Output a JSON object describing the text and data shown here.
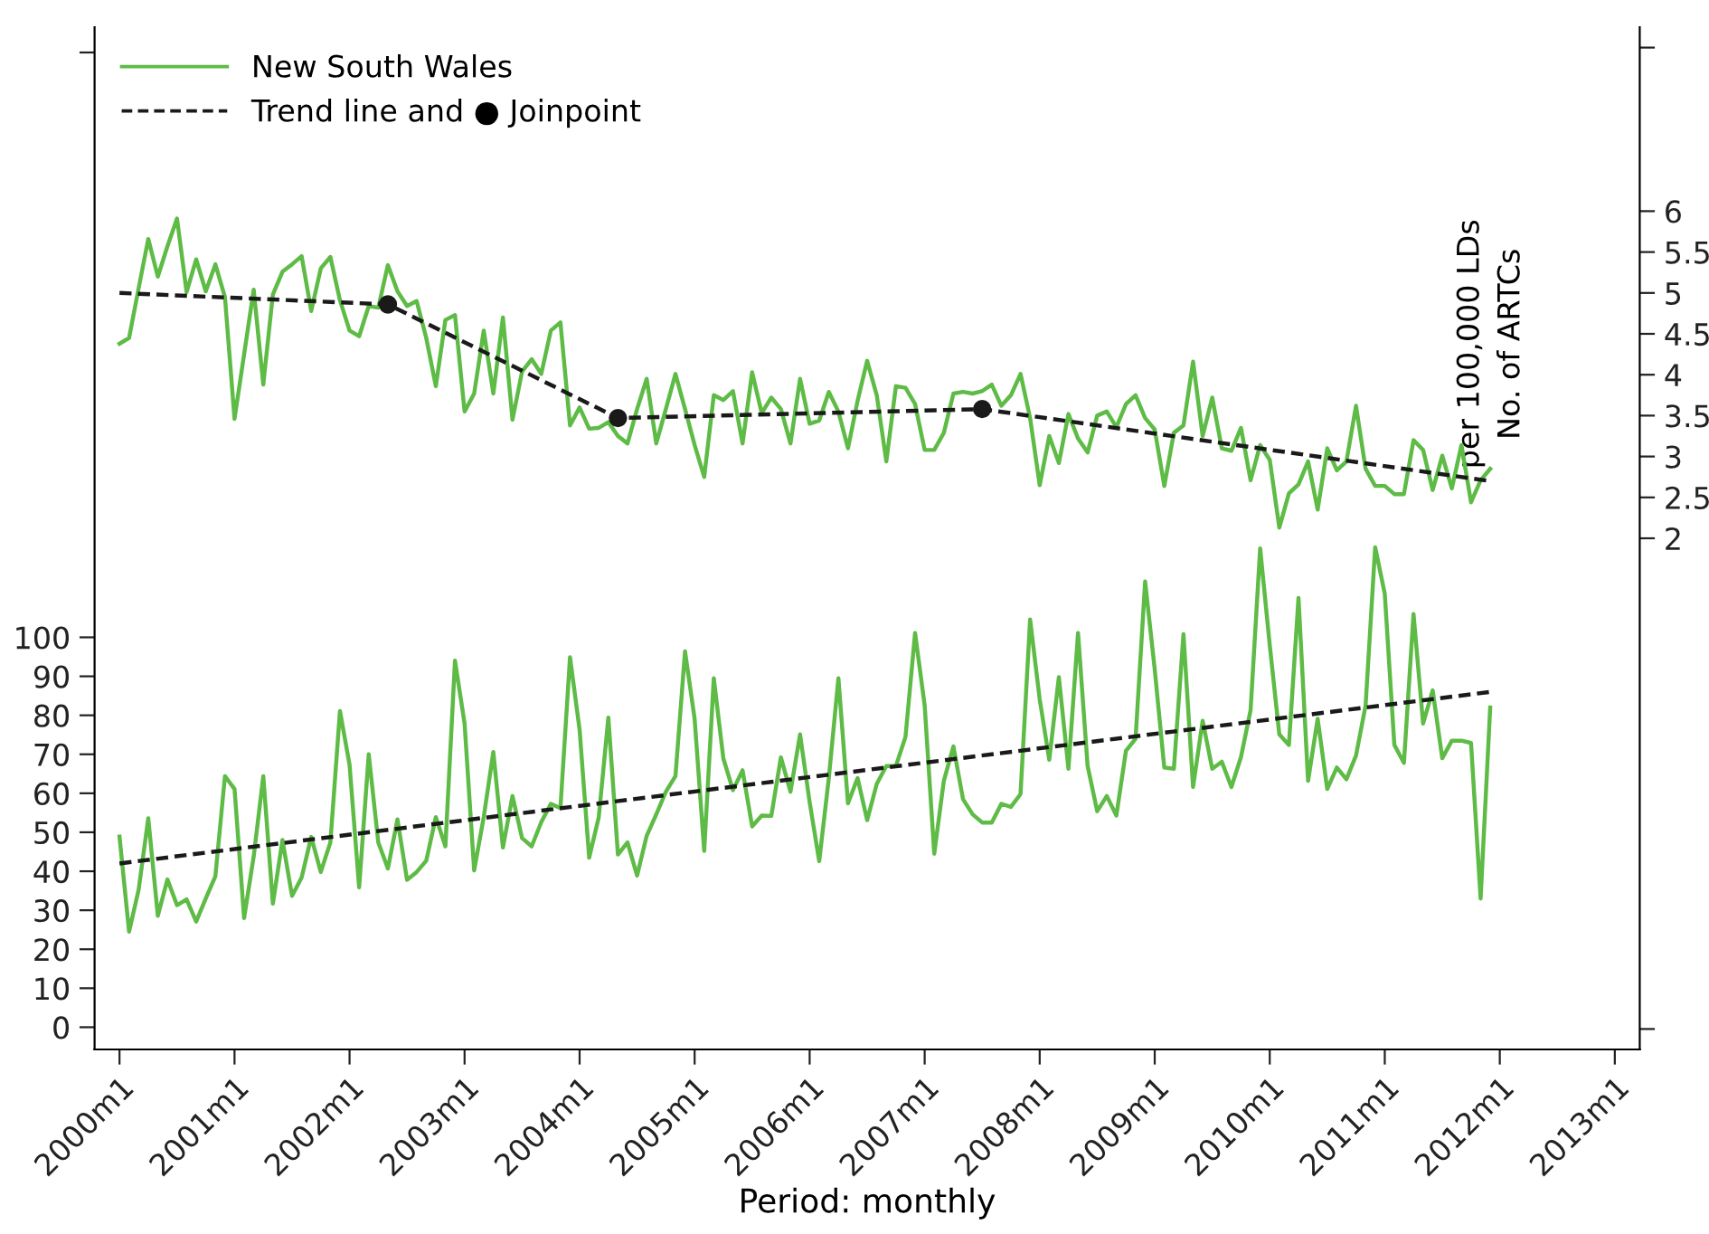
{
  "chart_data": {
    "type": "line",
    "xlabel": "Period: monthly",
    "y2label": "per 100,000 LDs\nNo. of ARTCs",
    "x": [
      "2000-01",
      "2000-02",
      "2000-03",
      "2000-04",
      "2000-05",
      "2000-06",
      "2000-07",
      "2000-08",
      "2000-09",
      "2000-10",
      "2000-11",
      "2000-12",
      "2001-01",
      "2001-02",
      "2001-03",
      "2001-04",
      "2001-05",
      "2001-06",
      "2001-07",
      "2001-08",
      "2001-09",
      "2001-10",
      "2001-11",
      "2001-12",
      "2002-01",
      "2002-02",
      "2002-03",
      "2002-04",
      "2002-05",
      "2002-06",
      "2002-07",
      "2002-08",
      "2002-09",
      "2002-10",
      "2002-11",
      "2002-12",
      "2003-01",
      "2003-02",
      "2003-03",
      "2003-04",
      "2003-05",
      "2003-06",
      "2003-07",
      "2003-08",
      "2003-09",
      "2003-10",
      "2003-11",
      "2003-12",
      "2004-01",
      "2004-02",
      "2004-03",
      "2004-04",
      "2004-05",
      "2004-06",
      "2004-07",
      "2004-08",
      "2004-09",
      "2004-10",
      "2004-11",
      "2004-12",
      "2005-01",
      "2005-02",
      "2005-03",
      "2005-04",
      "2005-05",
      "2005-06",
      "2005-07",
      "2005-08",
      "2005-09",
      "2005-10",
      "2005-11",
      "2005-12",
      "2006-01",
      "2006-02",
      "2006-03",
      "2006-04",
      "2006-05",
      "2006-06",
      "2006-07",
      "2006-08",
      "2006-09",
      "2006-10",
      "2006-11",
      "2006-12",
      "2007-01",
      "2007-02",
      "2007-03",
      "2007-04",
      "2007-05",
      "2007-06",
      "2007-07",
      "2007-08",
      "2007-09",
      "2007-10",
      "2007-11",
      "2007-12",
      "2008-01",
      "2008-02",
      "2008-03",
      "2008-04",
      "2008-05",
      "2008-06",
      "2008-07",
      "2008-08",
      "2008-09",
      "2008-10",
      "2008-11",
      "2008-12",
      "2009-01",
      "2009-02",
      "2009-03",
      "2009-04",
      "2009-05",
      "2009-06",
      "2009-07",
      "2009-08",
      "2009-09",
      "2009-10",
      "2009-11",
      "2009-12",
      "2010-01",
      "2010-02",
      "2010-03",
      "2010-04",
      "2010-05",
      "2010-06",
      "2010-07",
      "2010-08",
      "2010-09",
      "2010-10",
      "2010-11",
      "2010-12",
      "2011-01",
      "2011-02",
      "2011-03",
      "2011-04",
      "2011-05",
      "2011-06",
      "2011-07",
      "2011-08",
      "2011-09",
      "2011-10",
      "2011-11",
      "2011-12"
    ],
    "series": [
      {
        "name": "New South Wales",
        "color": "#5dbb46",
        "line_style": "solid",
        "axis": "y2",
        "values": [
          4.38,
          4.45,
          5.06,
          5.66,
          5.2,
          5.57,
          5.91,
          5.01,
          5.41,
          5.02,
          5.35,
          4.95,
          3.46,
          4.25,
          5.04,
          3.88,
          4.98,
          5.26,
          5.35,
          5.45,
          4.78,
          5.3,
          5.44,
          4.91,
          4.54,
          4.47,
          4.84,
          4.82,
          5.34,
          5.02,
          4.84,
          4.9,
          4.45,
          3.86,
          4.67,
          4.73,
          3.55,
          3.77,
          4.54,
          3.77,
          4.7,
          3.45,
          4.04,
          4.19,
          4.01,
          4.54,
          4.64,
          3.38,
          3.6,
          3.34,
          3.35,
          3.42,
          3.25,
          3.16,
          3.58,
          3.95,
          3.16,
          3.58,
          4.01,
          3.58,
          3.14,
          2.75,
          3.75,
          3.69,
          3.8,
          3.16,
          4.03,
          3.53,
          3.72,
          3.58,
          3.16,
          3.95,
          3.4,
          3.44,
          3.79,
          3.55,
          3.1,
          3.68,
          4.17,
          3.75,
          2.94,
          3.86,
          3.84,
          3.64,
          3.08,
          3.08,
          3.29,
          3.77,
          3.79,
          3.77,
          3.8,
          3.88,
          3.62,
          3.75,
          4.01,
          3.47,
          2.65,
          3.25,
          2.92,
          3.52,
          3.22,
          3.05,
          3.5,
          3.55,
          3.36,
          3.64,
          3.75,
          3.47,
          3.33,
          2.64,
          3.29,
          3.38,
          4.16,
          3.25,
          3.72,
          3.1,
          3.07,
          3.35,
          2.71,
          3.14,
          2.96,
          2.13,
          2.55,
          2.66,
          2.94,
          2.35,
          3.1,
          2.83,
          2.94,
          3.62,
          2.85,
          2.64,
          2.64,
          2.54,
          2.54,
          3.2,
          3.08,
          2.59,
          3.01,
          2.61,
          3.14,
          2.44,
          2.71,
          2.85
        ]
      },
      {
        "color": "#5dbb46",
        "line_style": "solid",
        "values": [
          48.9,
          24.5,
          35.3,
          53.6,
          28.6,
          37.9,
          31.3,
          32.8,
          27.1,
          33,
          38.7,
          64.4,
          61.1,
          28,
          43.8,
          64.4,
          31.7,
          48,
          33.7,
          38.4,
          48.8,
          39.8,
          47.4,
          81.1,
          67.3,
          35.9,
          70,
          47.4,
          40.7,
          53.3,
          37.8,
          39.8,
          42.7,
          53.9,
          46.4,
          94,
          77.9,
          40.2,
          53.9,
          70.6,
          46.1,
          59.3,
          48.5,
          46.4,
          52.6,
          57.3,
          56.2,
          94.9,
          76.3,
          43.5,
          53.9,
          79.4,
          44.3,
          47.4,
          38.9,
          49.1,
          54.6,
          60.4,
          64.4,
          96.4,
          79.1,
          45.2,
          89.5,
          68.9,
          60.8,
          65.9,
          51.5,
          54.3,
          54.2,
          69.2,
          60.4,
          75.1,
          57.7,
          42.6,
          63.9,
          89.5,
          57.4,
          63.9,
          53.1,
          62.4,
          67,
          67,
          74.5,
          101.1,
          82.5,
          44.5,
          63.2,
          72,
          58.5,
          54.6,
          52.5,
          52.5,
          57.3,
          56.5,
          59.8,
          104.6,
          84.1,
          68.6,
          89.8,
          66.3,
          101.1,
          67,
          55.4,
          59.3,
          54.3,
          70.9,
          74,
          114.3,
          91.8,
          66.6,
          66.3,
          100.8,
          61.6,
          78.6,
          66.3,
          68.1,
          61.6,
          69.3,
          81.3,
          122.8,
          98,
          75.1,
          72.4,
          110.1,
          63.2,
          79.1,
          61.1,
          66.6,
          63.6,
          69.7,
          82.5,
          123.1,
          111.2,
          72.4,
          67.8,
          106,
          77.9,
          86.4,
          69,
          73.5,
          73.5,
          72.9,
          33,
          82
        ]
      },
      {
        "name": "Trend line and ● Joinpoint",
        "color": "#1a1a1a",
        "line_style": "dashed",
        "axis": "y2",
        "x": [
          "2000-01",
          "2002-05",
          "2004-05",
          "2007-07",
          "2011-12"
        ],
        "values": [
          5.0,
          4.86,
          3.47,
          3.58,
          2.7
        ]
      },
      {
        "color": "#1a1a1a",
        "line_style": "dashed",
        "x": [
          "2000-01",
          "2011-12"
        ],
        "values": [
          42,
          86
        ]
      },
      {
        "type": "scatter",
        "marker": "circle",
        "color": "#1a1a1a",
        "axis": "y2",
        "x": [
          "2002-05",
          "2004-05",
          "2007-07"
        ],
        "values": [
          4.86,
          3.47,
          3.58
        ]
      }
    ],
    "xlim": [
      "1999-10-13",
      "2013-03-19"
    ],
    "xticks": [
      {
        "value": "2000-01",
        "label": "2000m1"
      },
      {
        "value": "2001-01",
        "label": "2001m1"
      },
      {
        "value": "2002-01",
        "label": "2002m1"
      },
      {
        "value": "2003-01",
        "label": "2003m1"
      },
      {
        "value": "2004-01",
        "label": "2004m1"
      },
      {
        "value": "2005-01",
        "label": "2005m1"
      },
      {
        "value": "2006-01",
        "label": "2006m1"
      },
      {
        "value": "2007-01",
        "label": "2007m1"
      },
      {
        "value": "2008-01",
        "label": "2008m1"
      },
      {
        "value": "2009-01",
        "label": "2009m1"
      },
      {
        "value": "2010-01",
        "label": "2010m1"
      },
      {
        "value": "2011-01",
        "label": "2011m1"
      },
      {
        "value": "2012-01",
        "label": "2012m1"
      },
      {
        "value": "2013-01",
        "label": "2013m1"
      }
    ],
    "ylim": [
      -5.7,
      256.5
    ],
    "yticks": [
      0,
      10,
      20,
      30,
      40,
      50,
      60,
      70,
      80,
      90,
      100,
      {
        "value": 250,
        "label": null
      }
    ],
    "y2lim": [
      -4.25,
      8.25
    ],
    "y2ticks": [
      {
        "value": -4,
        "label": null
      },
      2,
      2.5,
      3,
      3.5,
      4,
      4.5,
      5,
      5.5,
      6,
      {
        "value": 8,
        "label": null
      }
    ],
    "grid": false,
    "legend": "top left"
  }
}
